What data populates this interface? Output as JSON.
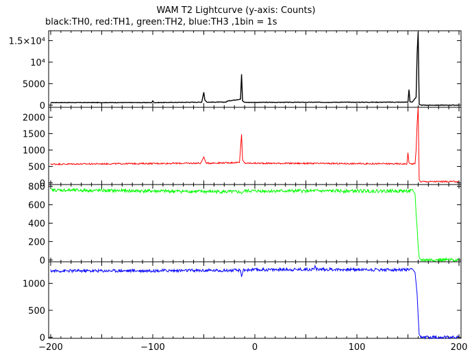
{
  "title": "WAM T2 Lightcurve (y-axis: Counts)",
  "subtitle": "black:TH0, red:TH1, green:TH2, blue:TH3 ,1bin = 1s",
  "chart_data": {
    "type": "line",
    "title": "WAM T2 Lightcurve (y-axis: Counts)",
    "subtitle": "black:TH0, red:TH1, green:TH2, blue:TH3 ,1bin = 1s",
    "xlabel": "",
    "xlim": [
      -202,
      202
    ],
    "x_ticks": [
      {
        "value": -200,
        "label": "−200"
      },
      {
        "value": -100,
        "label": "−100"
      },
      {
        "value": 0,
        "label": "0"
      },
      {
        "value": 100,
        "label": "100"
      },
      {
        "value": 200,
        "label": "200"
      }
    ],
    "bin_seconds": 1,
    "panels": [
      {
        "name": "TH0",
        "color": "#000000",
        "ylim": [
          -500,
          17300
        ],
        "y_ticks": [
          {
            "value": 0,
            "label": "0"
          },
          {
            "value": 5000,
            "label": "5000"
          },
          {
            "value": 10000,
            "label": "10⁴"
          },
          {
            "value": 15000,
            "label": "1.5×10⁴"
          }
        ],
        "series": {
          "x": [
            -200,
            -101,
            -100,
            -99,
            -52,
            -50,
            -49,
            -47,
            -28,
            -27,
            -14,
            -13,
            -12,
            -10,
            150,
            151,
            152,
            154,
            158,
            159,
            160,
            161,
            162,
            200
          ],
          "values": [
            600,
            600,
            1000,
            600,
            700,
            3000,
            1200,
            700,
            700,
            950,
            1400,
            7200,
            1000,
            650,
            700,
            3600,
            800,
            700,
            1800,
            12000,
            17000,
            200,
            0,
            0
          ]
        }
      },
      {
        "name": "TH1",
        "color": "#ff0000",
        "ylim": [
          -50,
          2300
        ],
        "y_ticks": [
          {
            "value": 0,
            "label": "0"
          },
          {
            "value": 500,
            "label": "500"
          },
          {
            "value": 1000,
            "label": "1000"
          },
          {
            "value": 1500,
            "label": "1500"
          },
          {
            "value": 2000,
            "label": "2000"
          }
        ],
        "series": {
          "x": [
            -200,
            -53,
            -50,
            -48,
            -15,
            -13,
            -12,
            -10,
            149,
            150,
            151,
            152,
            157,
            158,
            159,
            160,
            161,
            162,
            200
          ],
          "values": [
            570,
            600,
            790,
            600,
            620,
            1480,
            700,
            600,
            580,
            920,
            620,
            580,
            580,
            1000,
            1800,
            2300,
            100,
            40,
            40
          ]
        }
      },
      {
        "name": "TH2",
        "color": "#00ff00",
        "ylim": [
          -20,
          820
        ],
        "y_ticks": [
          {
            "value": 0,
            "label": "0"
          },
          {
            "value": 200,
            "label": "200"
          },
          {
            "value": 400,
            "label": "400"
          },
          {
            "value": 600,
            "label": "600"
          },
          {
            "value": 800,
            "label": "800"
          }
        ],
        "series": {
          "x": [
            -200,
            -14,
            -13,
            -11,
            155,
            157,
            158,
            159,
            160,
            161,
            162,
            200
          ],
          "values": [
            760,
            740,
            720,
            750,
            750,
            720,
            500,
            350,
            150,
            30,
            0,
            0
          ]
        }
      },
      {
        "name": "TH3",
        "color": "#0000ff",
        "ylim": [
          -20,
          1400
        ],
        "y_ticks": [
          {
            "value": 0,
            "label": "0"
          },
          {
            "value": 500,
            "label": "500"
          },
          {
            "value": 1000,
            "label": "1000"
          }
        ],
        "series": {
          "x": [
            -200,
            -14,
            -13,
            -11,
            58,
            59,
            60,
            155,
            157,
            158,
            159,
            160,
            161,
            162,
            200
          ],
          "values": [
            1230,
            1240,
            1120,
            1250,
            1260,
            1330,
            1260,
            1250,
            1200,
            1000,
            800,
            400,
            50,
            0,
            0
          ]
        }
      }
    ]
  }
}
